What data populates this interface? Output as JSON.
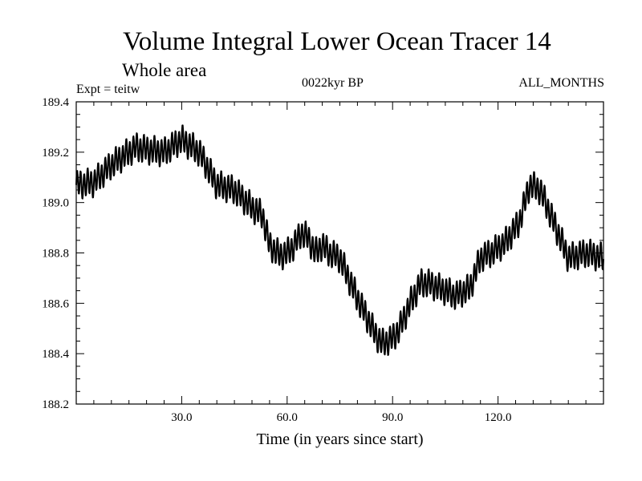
{
  "chart_data": {
    "type": "line",
    "title": "Volume Integral Lower Ocean Tracer 14",
    "subtitle": "Whole area",
    "experiment_label": "Expt = teitw",
    "period_label": "0022kyr BP",
    "months_label": "ALL_MONTHS",
    "xlabel": "Time (in years since start)",
    "ylabel": "",
    "xlim": [
      0,
      150
    ],
    "ylim": [
      188.2,
      189.4
    ],
    "xticks": [
      30,
      60,
      90,
      120
    ],
    "xtick_labels": [
      "30.0",
      "60.0",
      "90.0",
      "120.0"
    ],
    "yticks": [
      188.2,
      188.4,
      188.6,
      188.8,
      189.0,
      189.2,
      189.4
    ],
    "ytick_labels": [
      "188.2",
      "188.4",
      "188.6",
      "188.8",
      "189.0",
      "189.2",
      "189.4"
    ],
    "grid": false,
    "line_color": "#000000",
    "oscillation_amplitude": 0.05,
    "oscillation_period_years": 1,
    "series": [
      {
        "name": "Lower Ocean Tracer 14",
        "x": [
          0,
          5,
          10,
          17,
          20,
          25,
          30,
          35,
          40,
          45,
          50,
          53,
          55,
          58,
          60,
          62,
          64,
          66,
          68,
          70,
          72,
          75,
          80,
          85,
          87,
          90,
          92,
          95,
          98,
          100,
          105,
          108,
          112,
          115,
          118,
          122,
          126,
          129,
          132,
          135,
          140,
          145,
          150
        ],
        "y": [
          189.07,
          189.08,
          189.15,
          189.22,
          189.21,
          189.2,
          189.25,
          189.2,
          189.07,
          189.05,
          188.98,
          188.95,
          188.83,
          188.79,
          188.8,
          188.83,
          188.88,
          188.86,
          188.8,
          188.83,
          188.8,
          188.78,
          188.62,
          188.48,
          188.44,
          188.46,
          188.5,
          188.6,
          188.68,
          188.68,
          188.65,
          188.63,
          188.66,
          188.78,
          188.8,
          188.84,
          188.92,
          189.07,
          189.05,
          188.95,
          188.78,
          188.8,
          188.78
        ]
      }
    ]
  }
}
